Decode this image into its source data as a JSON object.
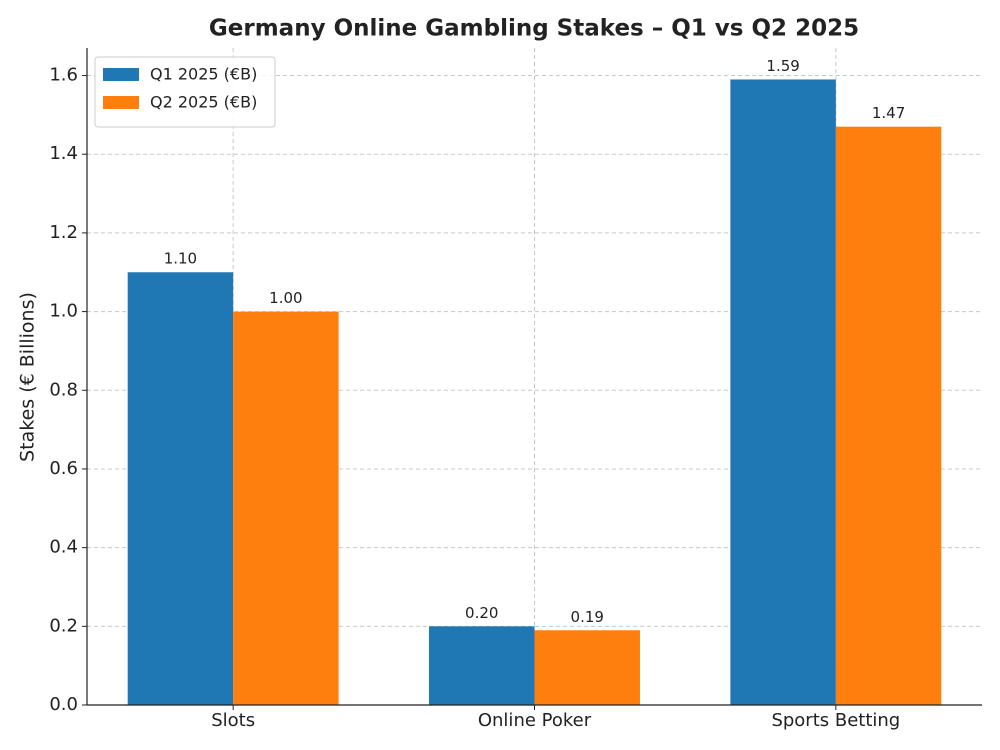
{
  "chart_data": {
    "type": "bar",
    "title": "Germany Online Gambling Stakes – Q1 vs Q2 2025",
    "y_label": "Stakes (€ Billions)",
    "categories": [
      "Slots",
      "Online Poker",
      "Sports Betting"
    ],
    "series": [
      {
        "name": "Q1 2025 (€B)",
        "color": "#1f77b4",
        "values": [
          1.1,
          0.2,
          1.59
        ],
        "value_labels": [
          "1.10",
          "0.20",
          "1.59"
        ]
      },
      {
        "name": "Q2 2025 (€B)",
        "color": "#ff7f0e",
        "values": [
          1.0,
          0.19,
          1.47
        ],
        "value_labels": [
          "1.00",
          "0.19",
          "1.47"
        ]
      }
    ],
    "ylim": [
      0,
      1.67
    ],
    "yticks": [
      {
        "value": 0,
        "label": "0.0"
      },
      0.2,
      0.4,
      0.6,
      0.8,
      {
        "value": 1,
        "label": "1.0"
      },
      1.2,
      1.4,
      1.6
    ],
    "grid": true,
    "legend": "upper-left"
  }
}
